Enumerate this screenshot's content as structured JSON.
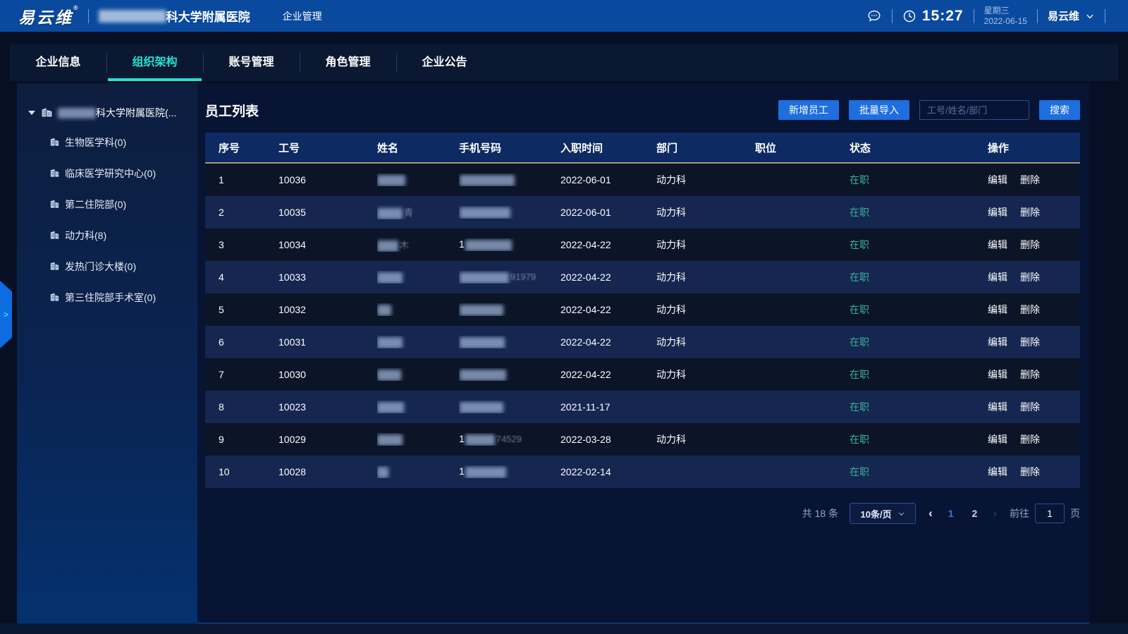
{
  "colors": {
    "header-blue": "#0a4a9e",
    "accent": "#1e6ede",
    "cyan": "#23e3d3",
    "teal": "#3fae9a",
    "tan": "#a79a77",
    "page-blue": "#2d7ae5"
  },
  "header": {
    "logo": "易云维",
    "logo_reg": "®",
    "org_name_suffix": "科大学附属医院",
    "menu": "企业管理",
    "time": "15:27",
    "weekday": "星期三",
    "date": "2022-06-15",
    "user": "易云维"
  },
  "tabs": [
    {
      "label": "企业信息",
      "active": false
    },
    {
      "label": "组织架构",
      "active": true
    },
    {
      "label": "账号管理",
      "active": false
    },
    {
      "label": "角色管理",
      "active": false
    },
    {
      "label": "企业公告",
      "active": false
    }
  ],
  "sidebar": {
    "root_suffix": "科大学附属医院(...",
    "items": [
      "生物医学科(0)",
      "临床医学研究中心(0)",
      "第二住院部(0)",
      "动力科(8)",
      "发热门诊大楼(0)",
      "第三住院部手术室(0)"
    ]
  },
  "main": {
    "title": "员工列表",
    "add_button": "新增员工",
    "import_button": "批量导入",
    "search_placeholder": "工号/姓名/部门",
    "search_button": "搜索",
    "table": {
      "columns": [
        "序号",
        "工号",
        "姓名",
        "手机号码",
        "入职时间",
        "部门",
        "职位",
        "状态",
        "操作"
      ],
      "actions": [
        "编辑",
        "删除"
      ],
      "rows": [
        {
          "seq": "1",
          "id": "10036",
          "name_blur": 40,
          "name_suffix": "",
          "phone_prefix": "",
          "phone_blur": 78,
          "phone_suffix": "",
          "date": "2022-06-01",
          "dept": "动力科",
          "position": "",
          "status": "在职"
        },
        {
          "seq": "2",
          "id": "10035",
          "name_blur": 36,
          "name_suffix": "青",
          "phone_prefix": "",
          "phone_blur": 72,
          "phone_suffix": "",
          "date": "2022-06-01",
          "dept": "动力科",
          "position": "",
          "status": "在职"
        },
        {
          "seq": "3",
          "id": "10034",
          "name_blur": 30,
          "name_suffix": "木",
          "phone_prefix": "1",
          "phone_blur": 66,
          "phone_suffix": "",
          "date": "2022-04-22",
          "dept": "动力科",
          "position": "",
          "status": "在职"
        },
        {
          "seq": "4",
          "id": "10033",
          "name_blur": 36,
          "name_suffix": "",
          "phone_prefix": "",
          "phone_blur": 70,
          "phone_suffix": "91979",
          "date": "2022-04-22",
          "dept": "动力科",
          "position": "",
          "status": "在职"
        },
        {
          "seq": "5",
          "id": "10032",
          "name_blur": 20,
          "name_suffix": "",
          "phone_prefix": "",
          "phone_blur": 62,
          "phone_suffix": "",
          "date": "2022-04-22",
          "dept": "动力科",
          "position": "",
          "status": "在职"
        },
        {
          "seq": "6",
          "id": "10031",
          "name_blur": 36,
          "name_suffix": "",
          "phone_prefix": "",
          "phone_blur": 64,
          "phone_suffix": "",
          "date": "2022-04-22",
          "dept": "动力科",
          "position": "",
          "status": "在职"
        },
        {
          "seq": "7",
          "id": "10030",
          "name_blur": 34,
          "name_suffix": "",
          "phone_prefix": "",
          "phone_blur": 66,
          "phone_suffix": "",
          "date": "2022-04-22",
          "dept": "动力科",
          "position": "",
          "status": "在职"
        },
        {
          "seq": "8",
          "id": "10023",
          "name_blur": 38,
          "name_suffix": "",
          "phone_prefix": "",
          "phone_blur": 62,
          "phone_suffix": "",
          "date": "2021-11-17",
          "dept": "",
          "position": "",
          "status": "在职"
        },
        {
          "seq": "9",
          "id": "10029",
          "name_blur": 36,
          "name_suffix": "",
          "phone_prefix": "1",
          "phone_blur": 42,
          "phone_suffix": "74529",
          "date": "2022-03-28",
          "dept": "动力科",
          "position": "",
          "status": "在职"
        },
        {
          "seq": "10",
          "id": "10028",
          "name_blur": 16,
          "name_suffix": "",
          "phone_prefix": "1",
          "phone_blur": 58,
          "phone_suffix": "",
          "date": "2022-02-14",
          "dept": "",
          "position": "",
          "status": "在职"
        }
      ]
    },
    "pagination": {
      "total": "共 18 条",
      "page_size": "10条/页",
      "prev": "‹",
      "next": "›",
      "pages": [
        "1",
        "2"
      ],
      "current": "1",
      "goto_label": "前往",
      "goto_value": "1",
      "goto_unit": "页"
    }
  },
  "misc": {
    "collapse_handle": ">"
  }
}
